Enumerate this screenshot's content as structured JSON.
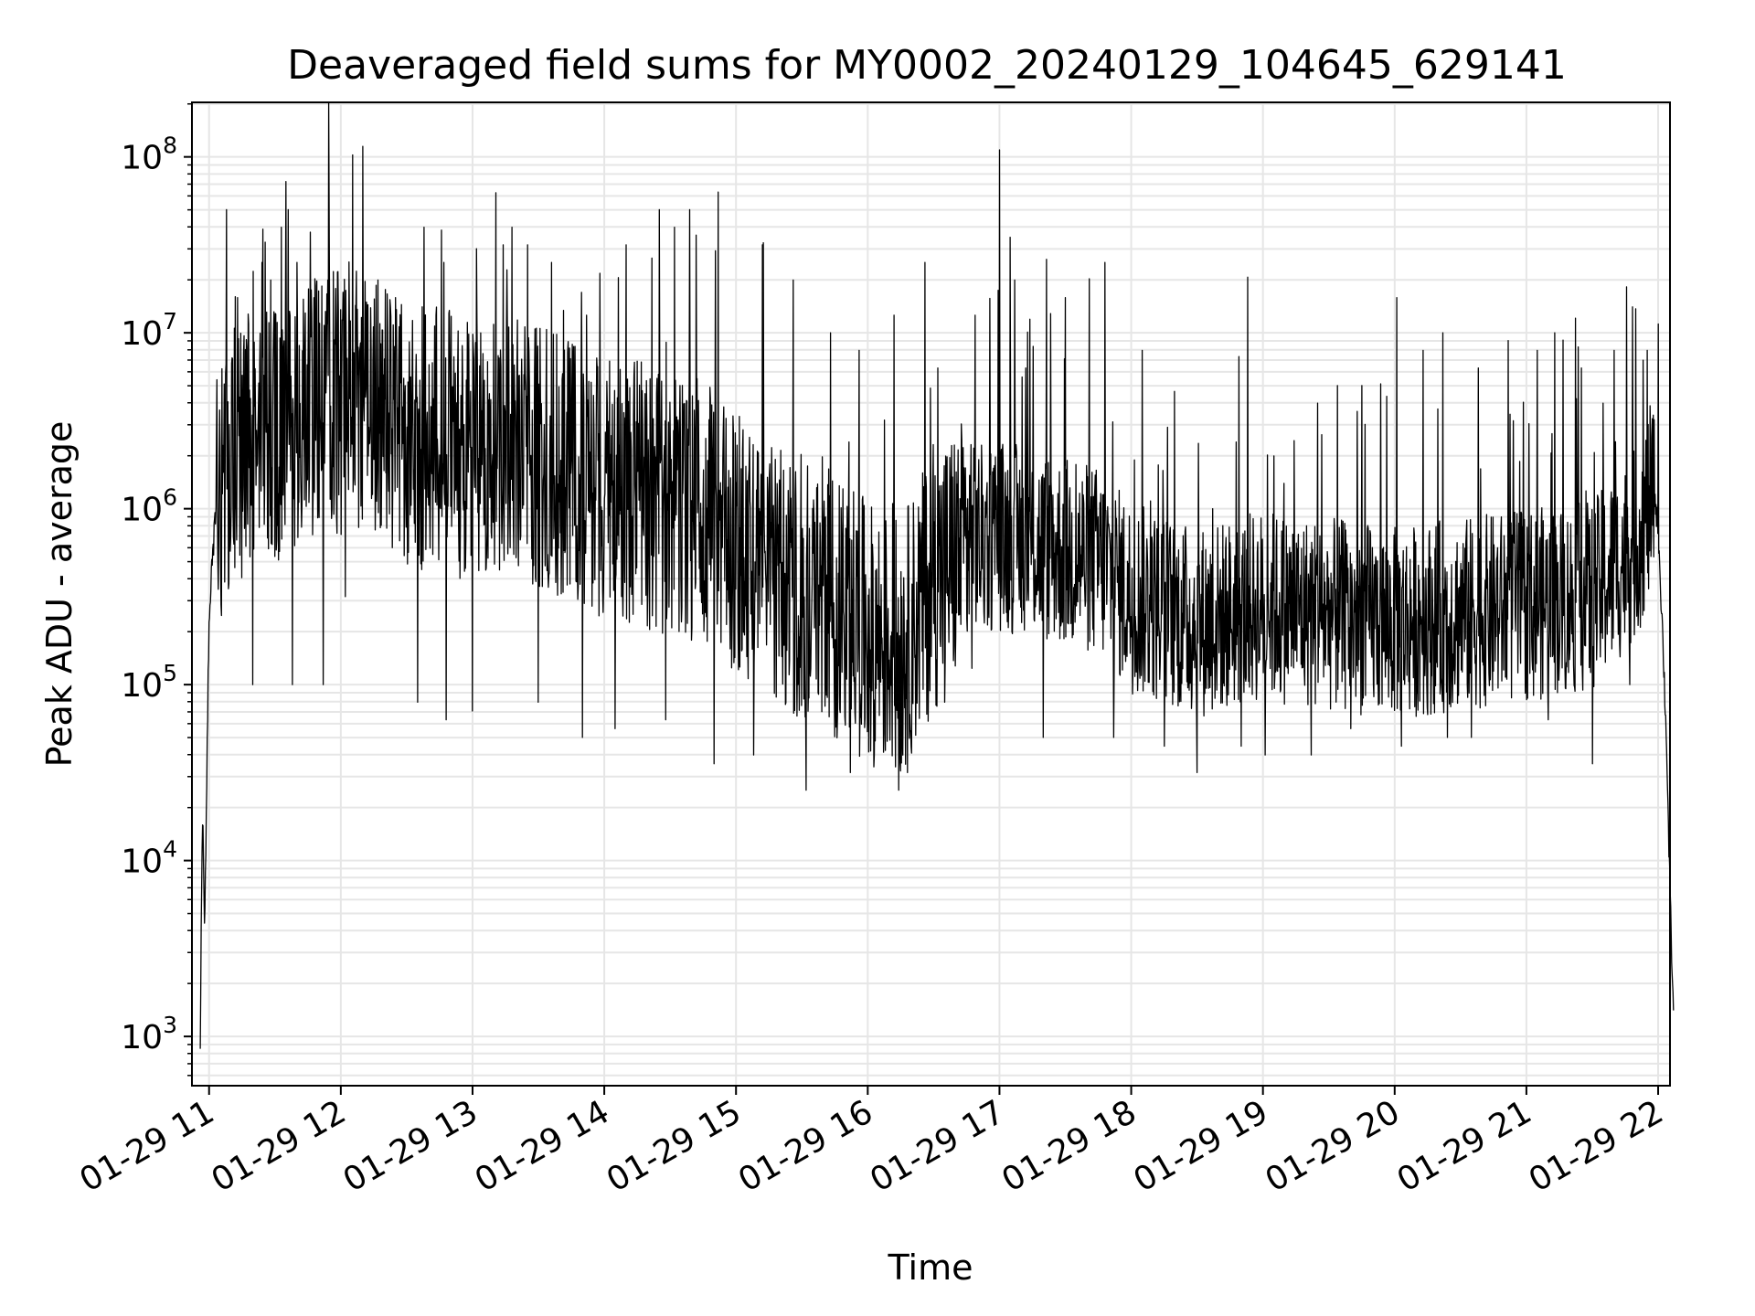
{
  "chart_data": {
    "type": "line",
    "title": "Deaveraged field sums for MY0002_20240129_104645_629141",
    "xlabel": "Time",
    "ylabel": "Peak ADU - average",
    "yscale": "log",
    "grid": true,
    "x_tick_labels": [
      "01-29 11",
      "01-29 12",
      "01-29 13",
      "01-29 14",
      "01-29 15",
      "01-29 16",
      "01-29 17",
      "01-29 18",
      "01-29 19",
      "01-29 20",
      "01-29 21",
      "01-29 22"
    ],
    "x_tick_hours": [
      11,
      12,
      13,
      14,
      15,
      16,
      17,
      18,
      19,
      20,
      21,
      22
    ],
    "xlim_hours": [
      10.87,
      22.09
    ],
    "y_ticks": [
      {
        "base": "10",
        "exp": "3"
      },
      {
        "base": "10",
        "exp": "4"
      },
      {
        "base": "10",
        "exp": "5"
      },
      {
        "base": "10",
        "exp": "6"
      },
      {
        "base": "10",
        "exp": "7"
      },
      {
        "base": "10",
        "exp": "8"
      }
    ],
    "ylim_log10": [
      2.72,
      8.31
    ],
    "line_color": "#000000",
    "grid_color": "#e6e6e6",
    "series": [
      {
        "x_start": "01-29 10:56",
        "x_end": "01-29 22:07",
        "anchors": [
          [
            "10:56",
            3.0
          ],
          [
            "10:57",
            4.3
          ],
          [
            "10:58",
            3.6
          ],
          [
            "10:59",
            4.5
          ],
          [
            "11:00",
            5.4
          ],
          [
            "11:03",
            6.0
          ],
          [
            "11:10",
            6.3
          ],
          [
            "11:20",
            6.4
          ],
          [
            "11:30",
            6.4
          ],
          [
            "11:45",
            6.6
          ],
          [
            "12:00",
            6.6
          ],
          [
            "12:15",
            6.6
          ],
          [
            "12:30",
            6.4
          ],
          [
            "12:45",
            6.4
          ],
          [
            "13:00",
            6.3
          ],
          [
            "13:15",
            6.4
          ],
          [
            "13:30",
            6.3
          ],
          [
            "13:45",
            6.2
          ],
          [
            "14:00",
            6.1
          ],
          [
            "14:15",
            6.1
          ],
          [
            "14:30",
            6.0
          ],
          [
            "14:45",
            6.0
          ],
          [
            "15:00",
            5.8
          ],
          [
            "15:20",
            5.6
          ],
          [
            "15:40",
            5.5
          ],
          [
            "16:00",
            5.3
          ],
          [
            "16:15",
            5.2
          ],
          [
            "16:30",
            5.6
          ],
          [
            "16:45",
            5.8
          ],
          [
            "17:00",
            5.85
          ],
          [
            "17:15",
            5.8
          ],
          [
            "17:30",
            5.75
          ],
          [
            "17:45",
            5.7
          ],
          [
            "18:00",
            5.5
          ],
          [
            "18:30",
            5.35
          ],
          [
            "19:00",
            5.45
          ],
          [
            "19:30",
            5.4
          ],
          [
            "20:00",
            5.35
          ],
          [
            "20:30",
            5.4
          ],
          [
            "21:00",
            5.45
          ],
          [
            "21:30",
            5.5
          ],
          [
            "21:50",
            5.8
          ],
          [
            "21:58",
            6.1
          ],
          [
            "22:00",
            5.9
          ],
          [
            "22:02",
            5.3
          ],
          [
            "22:04",
            4.6
          ],
          [
            "22:05",
            4.0
          ],
          [
            "22:07",
            3.1
          ]
        ],
        "spikes": [
          [
            "11:08",
            7.7
          ],
          [
            "11:13",
            7.2
          ],
          [
            "11:24",
            7.4
          ],
          [
            "11:28",
            7.3
          ],
          [
            "11:33",
            7.6
          ],
          [
            "11:36",
            7.7
          ],
          [
            "11:40",
            7.4
          ],
          [
            "11:46",
            6.9
          ],
          [
            "11:52",
            6.9
          ],
          [
            "12:07",
            7.35
          ],
          [
            "12:10",
            8.06
          ],
          [
            "12:17",
            7.3
          ],
          [
            "12:25",
            7.2
          ],
          [
            "12:38",
            7.6
          ],
          [
            "12:47",
            7.4
          ],
          [
            "13:00",
            7.5
          ],
          [
            "13:14",
            7.5
          ],
          [
            "13:18",
            7.6
          ],
          [
            "13:25",
            7.5
          ],
          [
            "13:36",
            7.4
          ],
          [
            "13:52",
            7.1
          ],
          [
            "14:10",
            7.5
          ],
          [
            "14:25",
            7.7
          ],
          [
            "14:32",
            7.6
          ],
          [
            "14:39",
            7.7
          ],
          [
            "14:52",
            7.8
          ],
          [
            "15:12",
            7.5
          ],
          [
            "15:26",
            7.3
          ],
          [
            "15:43",
            7.0
          ],
          [
            "15:56",
            6.9
          ],
          [
            "16:12",
            7.1
          ],
          [
            "16:18",
            6.8
          ],
          [
            "16:26",
            7.4
          ],
          [
            "16:32",
            6.8
          ],
          [
            "16:49",
            7.1
          ],
          [
            "17:00",
            8.04
          ],
          [
            "17:07",
            7.3
          ],
          [
            "17:12",
            6.8
          ],
          [
            "17:30",
            7.2
          ],
          [
            "17:48",
            7.4
          ],
          [
            "18:05",
            6.9
          ],
          [
            "18:37",
            6.0
          ],
          [
            "19:05",
            6.3
          ],
          [
            "19:25",
            6.6
          ],
          [
            "19:34",
            6.7
          ],
          [
            "19:45",
            6.7
          ],
          [
            "20:01",
            7.2
          ],
          [
            "20:13",
            6.9
          ],
          [
            "20:22",
            7.0
          ],
          [
            "20:38",
            6.8
          ],
          [
            "20:54",
            6.5
          ],
          [
            "21:05",
            6.9
          ],
          [
            "21:13",
            7.0
          ],
          [
            "21:25",
            6.8
          ],
          [
            "21:35",
            6.6
          ],
          [
            "21:40",
            6.9
          ],
          [
            "21:55",
            6.9
          ],
          [
            "22:00",
            7.05
          ]
        ],
        "dips": [
          [
            "11:20",
            5.0
          ],
          [
            "11:38",
            5.0
          ],
          [
            "11:52",
            5.0
          ],
          [
            "12:02",
            5.5
          ],
          [
            "12:35",
            4.9
          ],
          [
            "12:48",
            4.8
          ],
          [
            "13:00",
            4.85
          ],
          [
            "13:30",
            4.9
          ],
          [
            "13:50",
            4.7
          ],
          [
            "14:05",
            4.75
          ],
          [
            "14:28",
            4.8
          ],
          [
            "14:50",
            4.55
          ],
          [
            "15:08",
            4.6
          ],
          [
            "15:32",
            4.4
          ],
          [
            "15:52",
            4.5
          ],
          [
            "16:03",
            4.6
          ],
          [
            "16:14",
            4.4
          ],
          [
            "16:18",
            4.5
          ],
          [
            "16:35",
            4.9
          ],
          [
            "17:20",
            4.7
          ],
          [
            "17:52",
            4.7
          ],
          [
            "18:15",
            4.65
          ],
          [
            "18:30",
            4.5
          ],
          [
            "18:50",
            4.65
          ],
          [
            "19:01",
            4.6
          ],
          [
            "19:22",
            4.6
          ],
          [
            "19:40",
            4.75
          ],
          [
            "20:03",
            4.65
          ],
          [
            "20:24",
            4.7
          ],
          [
            "20:35",
            4.7
          ],
          [
            "21:10",
            4.8
          ],
          [
            "21:30",
            4.55
          ],
          [
            "21:47",
            5.0
          ]
        ]
      }
    ]
  }
}
